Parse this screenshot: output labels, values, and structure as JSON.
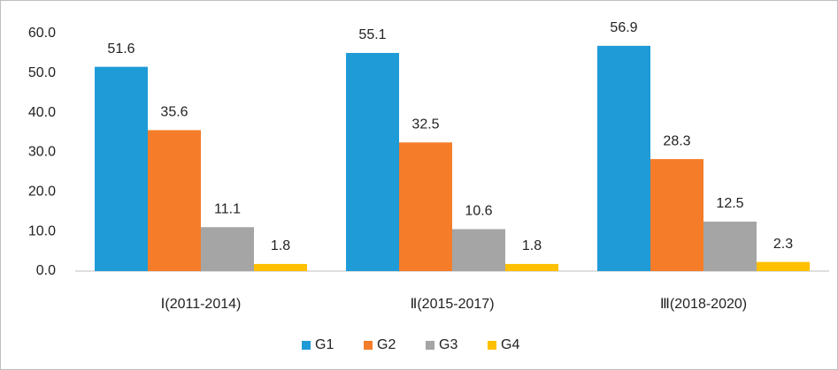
{
  "chart_data": {
    "type": "bar",
    "categories": [
      "Ⅰ(2011-2014)",
      "Ⅱ(2015-2017)",
      "Ⅲ(2018-2020)"
    ],
    "series": [
      {
        "name": "G1",
        "color": "#1f9bd7",
        "values": [
          51.6,
          55.1,
          56.9
        ]
      },
      {
        "name": "G2",
        "color": "#f57d2a",
        "values": [
          35.6,
          32.5,
          28.3
        ]
      },
      {
        "name": "G3",
        "color": "#a5a5a5",
        "values": [
          11.1,
          10.6,
          12.5
        ]
      },
      {
        "name": "G4",
        "color": "#ffc000",
        "values": [
          1.8,
          1.8,
          2.3
        ]
      }
    ],
    "ylim": [
      0,
      60
    ],
    "yticks": [
      {
        "value": 0,
        "label": "0.0"
      },
      {
        "value": 10,
        "label": "10.0"
      },
      {
        "value": 20,
        "label": "20.0"
      },
      {
        "value": 30,
        "label": "30.0"
      },
      {
        "value": 40,
        "label": "40.0"
      },
      {
        "value": 50,
        "label": "50.0"
      },
      {
        "value": 60,
        "label": "60.0"
      }
    ],
    "grid": false,
    "legend": "bottom"
  }
}
